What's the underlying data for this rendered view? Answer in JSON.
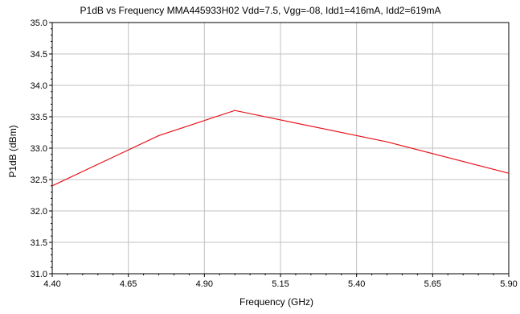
{
  "colors": {
    "series": "#e8131b",
    "grid": "#c0c0c0",
    "frame": "#000000",
    "background": "#ffffff"
  },
  "chart_data": {
    "type": "line",
    "title": "P1dB vs Frequency MMA445933H02 Vdd=7.5, Vgg=-08, Idd1=416mA, Idd2=619mA",
    "xlabel": "Frequency (GHz)",
    "ylabel": "P1dB (dBm)",
    "xlim": [
      4.4,
      5.9
    ],
    "ylim": [
      31.0,
      35.0
    ],
    "xticks": [
      4.4,
      4.65,
      4.9,
      5.15,
      5.4,
      5.65,
      5.9
    ],
    "xtick_labels": [
      "4.40",
      "4.65",
      "4.90",
      "5.15",
      "5.40",
      "5.65",
      "5.90"
    ],
    "yticks": [
      31.0,
      31.5,
      32.0,
      32.5,
      33.0,
      33.5,
      34.0,
      34.5,
      35.0
    ],
    "ytick_labels": [
      "31.0",
      "31.5",
      "32.0",
      "32.5",
      "33.0",
      "33.5",
      "34.0",
      "34.5",
      "35.0"
    ],
    "grid": true,
    "legend": "none",
    "series": [
      {
        "x": [
          4.4,
          4.75,
          5.0,
          5.5,
          5.9
        ],
        "y": [
          32.4,
          33.2,
          33.6,
          33.1,
          32.6
        ]
      }
    ]
  }
}
